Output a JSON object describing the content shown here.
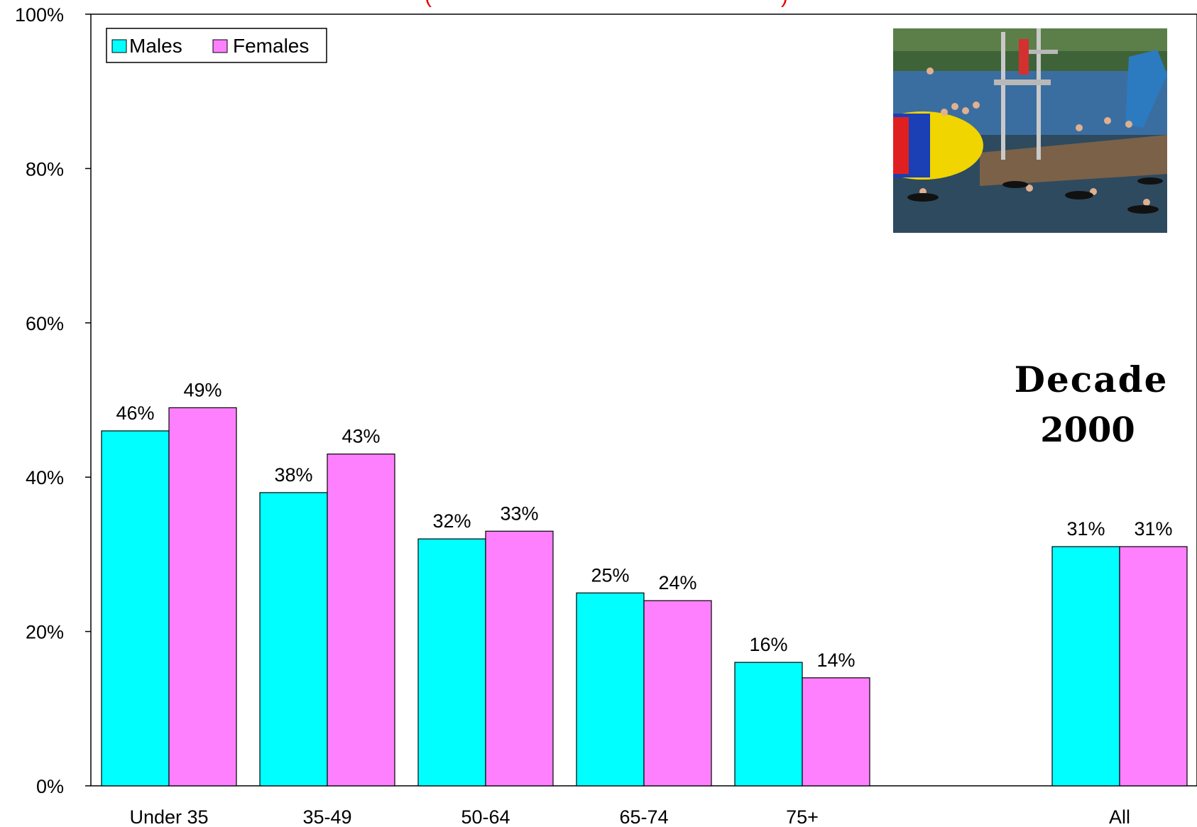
{
  "chart_data": {
    "type": "bar",
    "title": "",
    "title_fragment": "(",
    "title_fragment_end": ")",
    "xlabel": "",
    "ylabel": "",
    "ylim": [
      0,
      100
    ],
    "yticks": [
      0,
      20,
      40,
      60,
      80,
      100
    ],
    "ytick_labels": [
      "0%",
      "20%",
      "40%",
      "60%",
      "80%",
      "100%"
    ],
    "grid": false,
    "legend_position": "top-left",
    "categories": [
      "Under 35",
      "35-49",
      "50-64",
      "65-74",
      "75+",
      "All"
    ],
    "series": [
      {
        "name": "Males",
        "color": "#00FFFF",
        "values": [
          46,
          38,
          32,
          25,
          16,
          31
        ],
        "labels": [
          "46%",
          "38%",
          "32%",
          "25%",
          "16%",
          "31%"
        ]
      },
      {
        "name": "Females",
        "color": "#FF80FF",
        "values": [
          49,
          43,
          33,
          24,
          14,
          31
        ],
        "labels": [
          "49%",
          "43%",
          "33%",
          "24%",
          "14%",
          "31%"
        ]
      }
    ],
    "annotation": {
      "line1": "Decade",
      "line2": "2000"
    },
    "photo": {
      "icon": "lake-swimming-photo"
    }
  }
}
